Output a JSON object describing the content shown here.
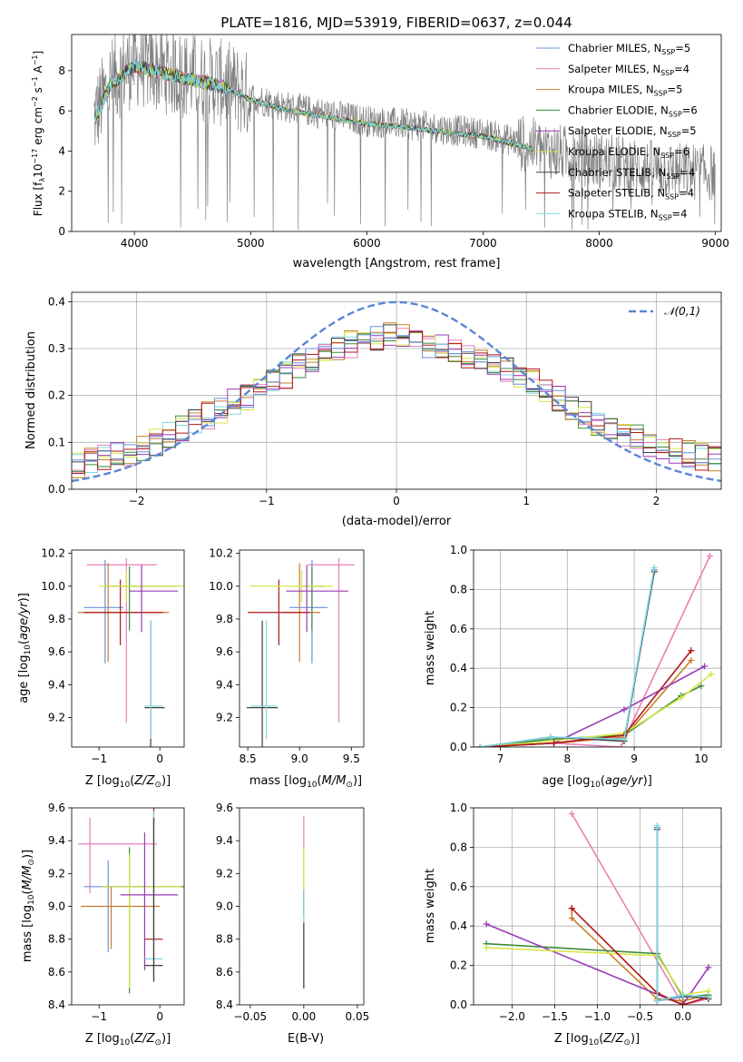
{
  "figure": {
    "title": "PLATE=1816, MJD=53919, FIBERID=0637, z=0.044"
  },
  "colors": {
    "Chabrier MILES": "#6a8fd8",
    "Salpeter MILES": "#e880b8",
    "Kroupa MILES": "#c87d28",
    "Chabrier ELODIE": "#3a8a3a",
    "Salpeter ELODIE": "#9a3ab8",
    "Kroupa ELODIE": "#d6e64a",
    "Chabrier STELIB": "#404040",
    "Salpeter STELIB": "#b01818",
    "Kroupa STELIB": "#7fd8e0",
    "data": "#808080",
    "gaussian": "#5b86d6"
  },
  "chart_data": [
    {
      "id": "spectrum",
      "type": "line",
      "title": "PLATE=1816, MJD=53919, FIBERID=0637, z=0.044",
      "xlabel": "wavelength [Angstrom, rest frame]",
      "ylabel": "Flux [fλ 10⁻¹⁷ erg cm⁻² s⁻¹ A⁻¹]",
      "xlim": [
        3460,
        9050
      ],
      "ylim": [
        0,
        9.8
      ],
      "xticks": [
        4000,
        5000,
        6000,
        7000,
        8000,
        9000
      ],
      "yticks": [
        0,
        2,
        4,
        6,
        8
      ],
      "grid": false,
      "legend_position": "top-right",
      "data_trend": {
        "x": [
          3650,
          3800,
          4000,
          4200,
          4500,
          4800,
          5000,
          5300,
          5600,
          6000,
          6400,
          6800,
          7000,
          7200,
          7400,
          7600,
          8000,
          8500,
          9000
        ],
        "y": [
          5.6,
          7.5,
          8.4,
          8.1,
          7.7,
          7.3,
          6.7,
          6.2,
          5.9,
          5.5,
          5.3,
          5.0,
          4.9,
          4.6,
          4.3,
          4.0,
          3.5,
          3.1,
          2.9
        ]
      },
      "data_noise": 1.6,
      "model_end_x": 7430,
      "series": [
        {
          "name": "Chabrier MILES, N_SSP=5",
          "legend": "Chabrier MILES, N",
          "nssp": "=5"
        },
        {
          "name": "Salpeter MILES, N_SSP=4",
          "legend": "Salpeter MILES, N",
          "nssp": "=4"
        },
        {
          "name": "Kroupa MILES, N_SSP=5",
          "legend": "Kroupa MILES, N",
          "nssp": "=5"
        },
        {
          "name": "Chabrier ELODIE, N_SSP=6",
          "legend": "Chabrier ELODIE, N",
          "nssp": "=6"
        },
        {
          "name": "Salpeter ELODIE, N_SSP=5",
          "legend": "Salpeter ELODIE, N",
          "nssp": "=5"
        },
        {
          "name": "Kroupa ELODIE, N_SSP=6",
          "legend": "Kroupa ELODIE, N",
          "nssp": "=6"
        },
        {
          "name": "Chabrier STELIB, N_SSP=4",
          "legend": "Chabrier STELIB, N",
          "nssp": "=4"
        },
        {
          "name": "Salpeter STELIB, N_SSP=4",
          "legend": "Salpeter STELIB, N",
          "nssp": "=4"
        },
        {
          "name": "Kroupa STELIB, N_SSP=4",
          "legend": "Kroupa STELIB, N",
          "nssp": "=4"
        }
      ],
      "subscript": "SSP"
    },
    {
      "id": "residuals",
      "type": "histogram",
      "xlabel": "(data-model)/error",
      "ylabel": "Normed distribution",
      "xlim": [
        -2.5,
        2.5
      ],
      "ylim": [
        0,
        0.42
      ],
      "xticks": [
        -2,
        -1,
        0,
        1,
        2
      ],
      "yticks": [
        0.0,
        0.1,
        0.2,
        0.3,
        0.4
      ],
      "grid": true,
      "legend_position": "top-right",
      "reference_curve": {
        "name": "𝒩(0,1)",
        "mean": 0,
        "sigma": 1
      },
      "bin_width": 0.1,
      "envelope": {
        "x": [
          -2.5,
          -2.0,
          -1.5,
          -1.0,
          -0.5,
          0.0,
          0.5,
          1.0,
          1.5,
          2.0,
          2.5
        ],
        "y": [
          0.05,
          0.08,
          0.15,
          0.22,
          0.3,
          0.33,
          0.29,
          0.24,
          0.15,
          0.09,
          0.06
        ]
      },
      "jitter": 0.03
    },
    {
      "id": "age-vs-z",
      "type": "errorbar",
      "xlabel": "Z [log10(Z/Z⊙)]",
      "ylabel": "age [log10(age/yr)]",
      "xlim": [
        -1.45,
        0.4
      ],
      "ylim": [
        9.02,
        10.22
      ],
      "xticks": [
        -1,
        0
      ],
      "yticks": [
        9.2,
        9.4,
        9.6,
        9.8,
        10.0,
        10.2
      ],
      "points": [
        {
          "s": 1,
          "x": -0.55,
          "xerr": [
            0.65,
            0.5
          ],
          "y": 10.13,
          "yerr": [
            0.96,
            0.04
          ]
        },
        {
          "s": 0,
          "x": -0.9,
          "xerr": [
            0.35,
            0.3
          ],
          "y": 9.87,
          "yerr": [
            0.34,
            0.29
          ]
        },
        {
          "s": 2,
          "x": -0.85,
          "xerr": [
            0.5,
            1.0
          ],
          "y": 9.84,
          "yerr": [
            0.3,
            0.3
          ]
        },
        {
          "s": 7,
          "x": -0.65,
          "xerr": [
            0.6,
            0.7
          ],
          "y": 9.84,
          "yerr": [
            0.2,
            0.2
          ]
        },
        {
          "s": 3,
          "x": -0.5,
          "xerr": [
            0.4,
            0.75
          ],
          "y": 10.0,
          "yerr": [
            0.27,
            0.12
          ]
        },
        {
          "s": 5,
          "x": -0.55,
          "xerr": [
            0.45,
            0.95
          ],
          "y": 10.0,
          "yerr": [
            0.1,
            0.1
          ]
        },
        {
          "s": 4,
          "x": -0.3,
          "xerr": [
            0.2,
            0.6
          ],
          "y": 9.97,
          "yerr": [
            0.25,
            0.16
          ]
        },
        {
          "s": 6,
          "x": -0.15,
          "xerr": [
            0.1,
            0.23
          ],
          "y": 9.26,
          "yerr": [
            0.24,
            0.53
          ]
        },
        {
          "s": 8,
          "x": -0.15,
          "xerr": [
            0.1,
            0.2
          ],
          "y": 9.27,
          "yerr": [
            0.2,
            0.52
          ]
        }
      ]
    },
    {
      "id": "age-vs-mass",
      "type": "errorbar",
      "xlabel": "mass [log10(M/M⊙)]",
      "ylabel": "",
      "xlim": [
        8.42,
        9.62
      ],
      "ylim": [
        9.02,
        10.22
      ],
      "xticks": [
        8.5,
        9.0,
        9.5
      ],
      "yticks": [
        9.2,
        9.4,
        9.6,
        9.8,
        10.0,
        10.2
      ],
      "points": [
        {
          "s": 1,
          "x": 9.38,
          "xerr": [
            0.3,
            0.15
          ],
          "y": 10.13,
          "yerr": [
            0.96,
            0.04
          ]
        },
        {
          "s": 0,
          "x": 9.12,
          "xerr": [
            0.22,
            0.15
          ],
          "y": 9.87,
          "yerr": [
            0.34,
            0.29
          ]
        },
        {
          "s": 2,
          "x": 9.0,
          "xerr": [
            0.17,
            0.2
          ],
          "y": 9.84,
          "yerr": [
            0.3,
            0.3
          ]
        },
        {
          "s": 7,
          "x": 8.8,
          "xerr": [
            0.3,
            0.3
          ],
          "y": 9.84,
          "yerr": [
            0.2,
            0.2
          ]
        },
        {
          "s": 3,
          "x": 9.12,
          "xerr": [
            0.1,
            0.12
          ],
          "y": 10.0,
          "yerr": [
            0.27,
            0.12
          ]
        },
        {
          "s": 5,
          "x": 9.02,
          "xerr": [
            0.5,
            0.3
          ],
          "y": 10.0,
          "yerr": [
            0.1,
            0.1
          ]
        },
        {
          "s": 4,
          "x": 9.07,
          "xerr": [
            0.2,
            0.4
          ],
          "y": 9.97,
          "yerr": [
            0.25,
            0.16
          ]
        },
        {
          "s": 6,
          "x": 8.64,
          "xerr": [
            0.15,
            0.15
          ],
          "y": 9.26,
          "yerr": [
            0.24,
            0.53
          ]
        },
        {
          "s": 8,
          "x": 8.68,
          "xerr": [
            0.15,
            0.1
          ],
          "y": 9.27,
          "yerr": [
            0.2,
            0.52
          ]
        }
      ]
    },
    {
      "id": "weight-vs-age",
      "type": "line",
      "xlabel": "age [log10(age/yr)]",
      "ylabel": "mass weight",
      "xlim": [
        6.6,
        10.3
      ],
      "ylim": [
        0,
        1.0
      ],
      "xticks": [
        7,
        8,
        9,
        10
      ],
      "yticks": [
        0.0,
        0.2,
        0.4,
        0.6,
        0.8,
        1.0
      ],
      "grid": true,
      "series": [
        {
          "s": 0,
          "x": [
            6.7,
            7.75,
            8.85,
            9.3
          ],
          "y": [
            0.0,
            0.05,
            0.04,
            0.9
          ]
        },
        {
          "s": 1,
          "x": [
            6.7,
            7.8,
            8.8,
            10.13
          ],
          "y": [
            0.0,
            0.02,
            0.0,
            0.97
          ]
        },
        {
          "s": 2,
          "x": [
            6.7,
            7.8,
            8.85,
            9.85
          ],
          "y": [
            0.0,
            0.02,
            0.05,
            0.44
          ]
        },
        {
          "s": 3,
          "x": [
            6.7,
            7.75,
            8.85,
            9.7,
            10.0
          ],
          "y": [
            0.0,
            0.04,
            0.06,
            0.26,
            0.31
          ]
        },
        {
          "s": 4,
          "x": [
            6.7,
            7.8,
            8.85,
            10.05
          ],
          "y": [
            0.0,
            0.02,
            0.19,
            0.41
          ]
        },
        {
          "s": 5,
          "x": [
            6.7,
            7.75,
            8.85,
            9.7,
            10.15
          ],
          "y": [
            0.0,
            0.03,
            0.07,
            0.25,
            0.37
          ]
        },
        {
          "s": 6,
          "x": [
            6.7,
            7.75,
            8.85,
            9.3
          ],
          "y": [
            0.0,
            0.05,
            0.03,
            0.89
          ]
        },
        {
          "s": 7,
          "x": [
            6.7,
            7.8,
            8.85,
            9.85
          ],
          "y": [
            0.0,
            0.02,
            0.06,
            0.49
          ]
        },
        {
          "s": 8,
          "x": [
            6.7,
            7.75,
            8.85,
            9.3
          ],
          "y": [
            0.0,
            0.05,
            0.04,
            0.91
          ]
        }
      ]
    },
    {
      "id": "mass-vs-z",
      "type": "errorbar",
      "xlabel": "Z [log10(Z/Z⊙)]",
      "ylabel": "mass [log10(M/M⊙)]",
      "xlim": [
        -1.45,
        0.4
      ],
      "ylim": [
        8.4,
        9.6
      ],
      "xticks": [
        -1,
        0
      ],
      "yticks": [
        8.4,
        8.6,
        8.8,
        9.0,
        9.2,
        9.4,
        9.6
      ],
      "points": [
        {
          "s": 1,
          "x": -1.15,
          "xerr": [
            0.2,
            1.1
          ],
          "y": 9.38,
          "yerr": [
            0.3,
            0.16
          ]
        },
        {
          "s": 0,
          "x": -0.85,
          "xerr": [
            0.4,
            0.7
          ],
          "y": 9.12,
          "yerr": [
            0.4,
            0.16
          ]
        },
        {
          "s": 2,
          "x": -0.8,
          "xerr": [
            0.5,
            0.8
          ],
          "y": 9.0,
          "yerr": [
            0.26,
            0.12
          ]
        },
        {
          "s": 3,
          "x": -0.5,
          "xerr": [
            0.45,
            0.95
          ],
          "y": 9.12,
          "yerr": [
            0.65,
            0.24
          ]
        },
        {
          "s": 5,
          "x": -0.5,
          "xerr": [
            0.45,
            0.85
          ],
          "y": 9.12,
          "yerr": [
            0.62,
            0.2
          ]
        },
        {
          "s": 4,
          "x": -0.25,
          "xerr": [
            0.4,
            0.55
          ],
          "y": 9.07,
          "yerr": [
            0.46,
            0.38
          ]
        },
        {
          "s": 7,
          "x": -0.1,
          "xerr": [
            0.15,
            0.15
          ],
          "y": 8.8,
          "yerr": [
            0.25,
            0.8
          ]
        },
        {
          "s": 8,
          "x": -0.1,
          "xerr": [
            0.15,
            0.15
          ],
          "y": 8.68,
          "yerr": [
            0.1,
            0.9
          ]
        },
        {
          "s": 6,
          "x": -0.1,
          "xerr": [
            0.15,
            0.15
          ],
          "y": 8.64,
          "yerr": [
            0.1,
            0.9
          ]
        }
      ]
    },
    {
      "id": "mass-vs-ebv",
      "type": "errorbar",
      "xlabel": "E(B-V)",
      "ylabel": "",
      "xlim": [
        -0.06,
        0.056
      ],
      "ylim": [
        8.4,
        9.6
      ],
      "xticks": [
        -0.05,
        0.0,
        0.05
      ],
      "yticks": [
        8.4,
        8.6,
        8.8,
        9.0,
        9.2,
        9.4,
        9.6
      ],
      "points": [
        {
          "s": 1,
          "x": 0.0,
          "xerr": [
            0,
            0
          ],
          "y": 9.3,
          "yerr": [
            0.2,
            0.25
          ]
        },
        {
          "s": 5,
          "x": 0.0,
          "xerr": [
            0,
            0
          ],
          "y": 9.0,
          "yerr": [
            0.45,
            0.36
          ]
        },
        {
          "s": 7,
          "x": 0.0,
          "xerr": [
            0,
            0
          ],
          "y": 9.0,
          "yerr": [
            0.05,
            0.1
          ]
        },
        {
          "s": 8,
          "x": 0.0,
          "xerr": [
            0,
            0
          ],
          "y": 8.8,
          "yerr": [
            0.3,
            0.3
          ]
        },
        {
          "s": 6,
          "x": 0.0,
          "xerr": [
            0,
            0
          ],
          "y": 8.7,
          "yerr": [
            0.2,
            0.2
          ]
        }
      ]
    },
    {
      "id": "weight-vs-z",
      "type": "line",
      "xlabel": "Z [log10(Z/Z⊙)]",
      "ylabel": "mass weight",
      "xlim": [
        -2.45,
        0.45
      ],
      "ylim": [
        0,
        1.0
      ],
      "xticks": [
        -2.0,
        -1.5,
        -1.0,
        -0.5,
        0.0
      ],
      "yticks": [
        0.0,
        0.2,
        0.4,
        0.6,
        0.8,
        1.0
      ],
      "grid": true,
      "series": [
        {
          "s": 0,
          "x": [
            -0.3,
            -0.3,
            0.0,
            0.3
          ],
          "y": [
            0.9,
            0.02,
            0.04,
            0.04
          ]
        },
        {
          "s": 1,
          "x": [
            -1.3,
            0.0,
            0.3
          ],
          "y": [
            0.97,
            0.0,
            0.03
          ]
        },
        {
          "s": 2,
          "x": [
            -1.3,
            -1.3,
            -0.3,
            0.0,
            0.3
          ],
          "y": [
            0.49,
            0.44,
            0.03,
            0.02,
            0.05
          ]
        },
        {
          "s": 3,
          "x": [
            -2.3,
            -0.3,
            0.0,
            0.3
          ],
          "y": [
            0.31,
            0.26,
            0.04,
            0.05
          ]
        },
        {
          "s": 4,
          "x": [
            -2.3,
            0.0,
            0.3
          ],
          "y": [
            0.41,
            0.0,
            0.19
          ]
        },
        {
          "s": 5,
          "x": [
            -2.3,
            -0.3,
            0.0,
            0.3
          ],
          "y": [
            0.29,
            0.25,
            0.05,
            0.07
          ]
        },
        {
          "s": 6,
          "x": [
            -0.3,
            -0.3,
            0.0,
            0.3
          ],
          "y": [
            0.89,
            0.02,
            0.05,
            0.03
          ]
        },
        {
          "s": 7,
          "x": [
            -1.3,
            -0.3,
            0.0,
            0.3
          ],
          "y": [
            0.49,
            0.06,
            0.0,
            0.04
          ]
        },
        {
          "s": 8,
          "x": [
            -0.3,
            -0.3,
            0.0,
            0.3
          ],
          "y": [
            0.91,
            0.02,
            0.05,
            0.04
          ]
        }
      ]
    }
  ]
}
